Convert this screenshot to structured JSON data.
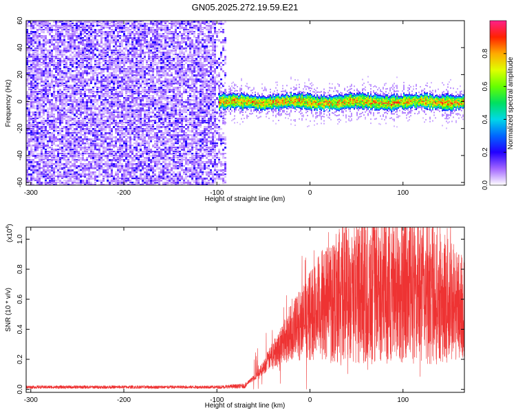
{
  "title": "GN05.2025.272.19.59.E21",
  "chart_data": [
    {
      "type": "heatmap",
      "xlabel": "Height of straight line (km)",
      "ylabel": "Frequency (Hz)",
      "xlim": [
        -305,
        166
      ],
      "ylim": [
        -62,
        60
      ],
      "xticks": [
        -300,
        -200,
        -100,
        0,
        100
      ],
      "yticks": [
        -60,
        -40,
        -20,
        0,
        20,
        40,
        60
      ],
      "colorbar": {
        "label": "Normalized spectral amplitude",
        "range": [
          0,
          1
        ],
        "ticks": [
          0.0,
          0.2,
          0.4,
          0.6,
          0.8
        ],
        "tick_labels": [
          "0.0",
          "0.2",
          "0.4",
          "0.6",
          "0.8"
        ]
      },
      "regions": [
        {
          "name": "noise",
          "x_range": [
            -305,
            -90
          ],
          "y_range": [
            -62,
            60
          ],
          "amplitude": "low (0.0–0.15)"
        },
        {
          "name": "signal band",
          "x_range": [
            -98,
            166
          ],
          "center_freq_hz": 0,
          "halfwidth_hz": 5,
          "peak_amplitude": 0.95
        }
      ]
    },
    {
      "type": "line",
      "xlabel": "Height of straight line (km)",
      "ylabel": "SNR (10 * v/v)",
      "y_multiplier": "(x10",
      "y_multiplier_exp": "4",
      "y_multiplier_close": ")",
      "xlim": [
        -305,
        166
      ],
      "ylim": [
        -0.02,
        1.08
      ],
      "xticks": [
        -300,
        -200,
        -100,
        0,
        100
      ],
      "yticks": [
        0.0,
        0.2,
        0.4,
        0.6,
        0.8,
        1.0
      ],
      "series": [
        {
          "name": "SNR",
          "color": "#ee3333",
          "x": [
            -305,
            -200,
            -100,
            -70,
            -60,
            -50,
            -40,
            -30,
            -20,
            -10,
            0,
            10,
            20,
            30,
            40,
            50,
            60,
            70,
            80,
            90,
            100,
            110,
            120,
            130,
            140,
            150,
            160,
            166
          ],
          "values": [
            0.02,
            0.02,
            0.02,
            0.03,
            0.08,
            0.15,
            0.24,
            0.32,
            0.4,
            0.46,
            0.52,
            0.58,
            0.64,
            0.68,
            0.7,
            0.71,
            0.72,
            0.72,
            0.72,
            0.72,
            0.72,
            0.72,
            0.71,
            0.7,
            0.67,
            0.64,
            0.6,
            0.58
          ]
        }
      ]
    }
  ]
}
